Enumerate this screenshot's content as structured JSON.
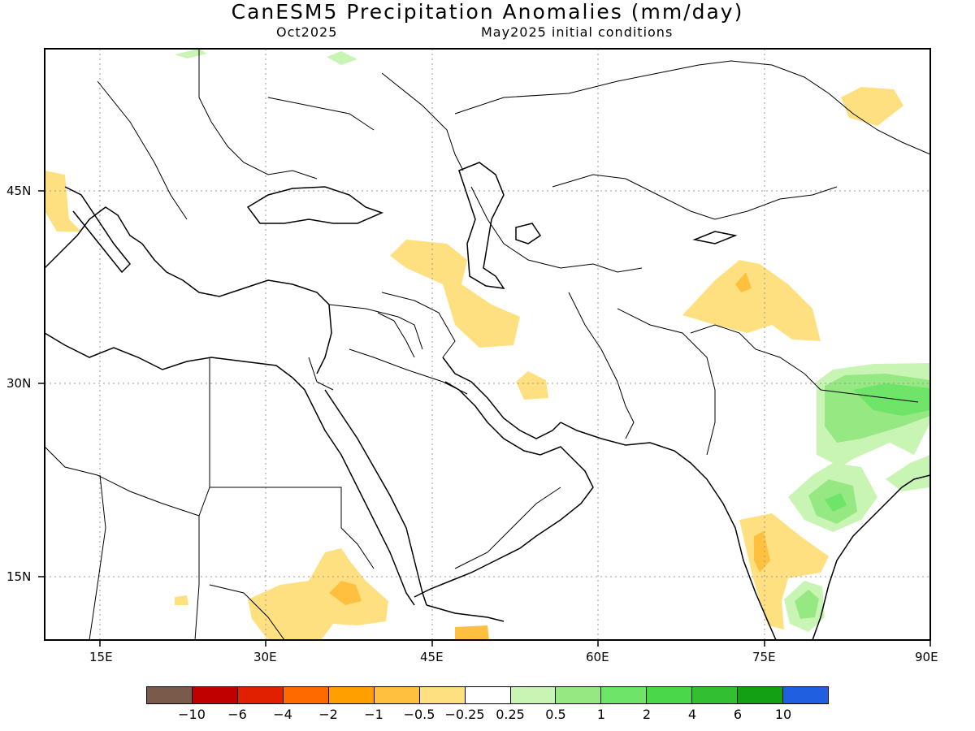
{
  "title": "CanESM5 Precipitation Anomalies (mm/day)",
  "valid_month": "Oct2025",
  "initial_conditions": "May2025 initial conditions",
  "lat_labels": [
    "45N",
    "30N",
    "15N"
  ],
  "lon_labels": [
    "15E",
    "30E",
    "45E",
    "60E",
    "75E",
    "90E"
  ],
  "colorbar": {
    "colors": [
      "#7a5a4a",
      "#c00000",
      "#e02000",
      "#ff6a00",
      "#ffa000",
      "#ffc040",
      "#ffe080",
      "#ffffff",
      "#c8f5b4",
      "#96e882",
      "#6ee468",
      "#4ad84a",
      "#32c032",
      "#14a014",
      "#2060e0"
    ],
    "labels": [
      "-10",
      "-6",
      "-4",
      "-2",
      "-1",
      "-0.5",
      "-0.25",
      "0.25",
      "0.5",
      "1",
      "2",
      "4",
      "6",
      "10"
    ]
  }
}
